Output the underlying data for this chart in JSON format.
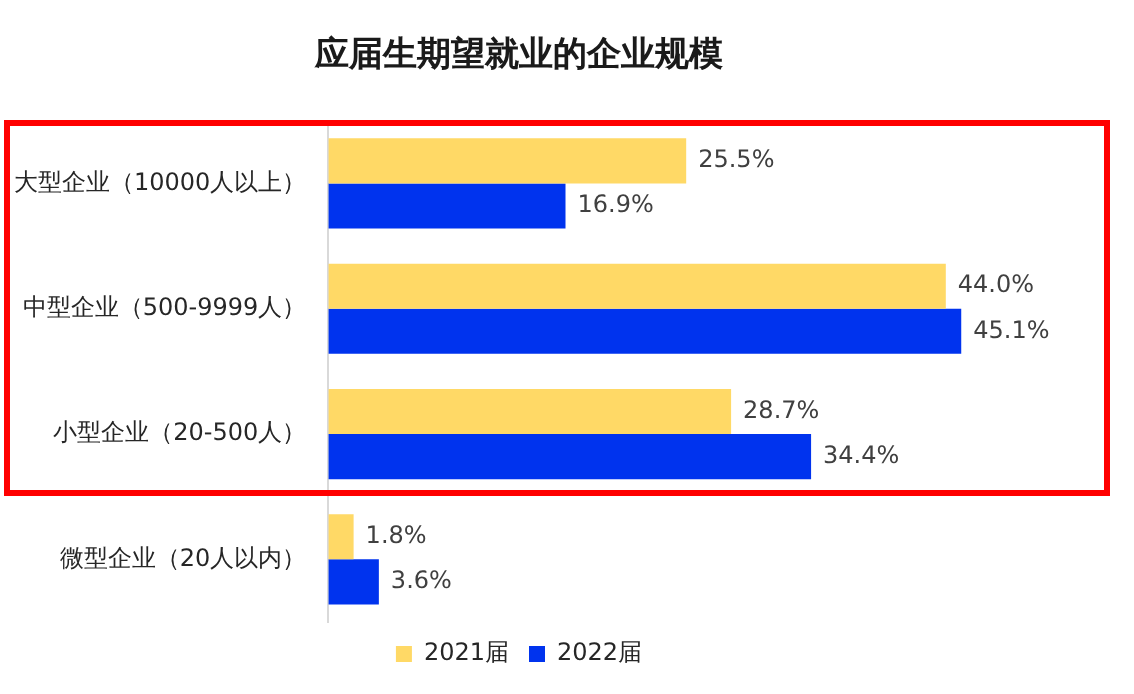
{
  "chart_data": {
    "type": "bar",
    "orientation": "horizontal",
    "title": "应届生期望就业的企业规模",
    "categories": [
      "大型企业（10000人以上）",
      "中型企业（500-9999人）",
      "小型企业（20-500人）",
      "微型企业（20人以内）"
    ],
    "series": [
      {
        "name": "2021届",
        "color": "#ffd966",
        "values": [
          25.5,
          44.0,
          28.7,
          1.8
        ],
        "value_labels": [
          "25.5%",
          "44.0%",
          "28.7%",
          "1.8%"
        ]
      },
      {
        "name": "2022届",
        "color": "#0033ee",
        "values": [
          16.9,
          45.1,
          34.4,
          3.6
        ],
        "value_labels": [
          "16.9%",
          "45.1%",
          "34.4%",
          "3.6%"
        ]
      }
    ],
    "legend": "bottom",
    "tick_labels": "y"
  }
}
